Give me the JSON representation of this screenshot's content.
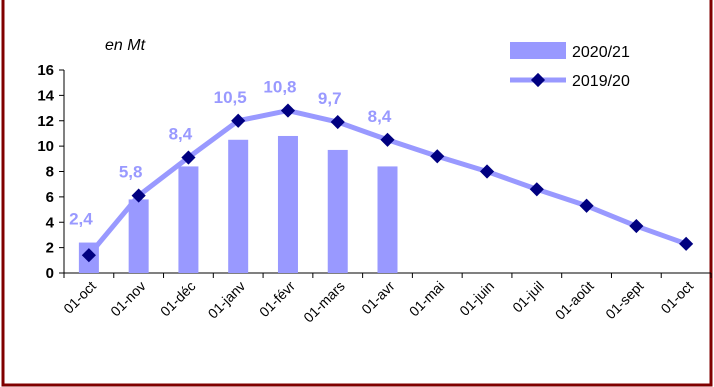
{
  "chart_data": {
    "type": "bar",
    "unit_label": "en Mt",
    "categories": [
      "01-oct",
      "01-nov",
      "01-déc",
      "01-janv",
      "01-févr",
      "01-mars",
      "01-avr",
      "01-mai",
      "01-juin",
      "01-juil",
      "01-août",
      "01-sept",
      "01-oct"
    ],
    "ylim": [
      0,
      16
    ],
    "yticks": [
      0,
      2,
      4,
      6,
      8,
      10,
      12,
      14,
      16
    ],
    "grid": false,
    "legend_position": "top-right",
    "series": [
      {
        "name": "2020/21",
        "kind": "bar",
        "color": "#9999FF",
        "values": [
          2.4,
          5.8,
          8.4,
          10.5,
          10.8,
          9.7,
          8.4,
          null,
          null,
          null,
          null,
          null,
          null
        ],
        "data_labels": [
          "2,4",
          "5,8",
          "8,4",
          "10,5",
          "10,8",
          "9,7",
          "8,4",
          null,
          null,
          null,
          null,
          null,
          null
        ]
      },
      {
        "name": "2019/20",
        "kind": "line",
        "color": "#9999FF",
        "marker_color": "#000080",
        "values": [
          1.4,
          6.1,
          9.1,
          12.0,
          12.8,
          11.9,
          10.5,
          9.2,
          8.0,
          6.6,
          5.3,
          3.7,
          2.3
        ]
      }
    ],
    "label_color": "#9999FF",
    "frame_color": "#800000"
  }
}
